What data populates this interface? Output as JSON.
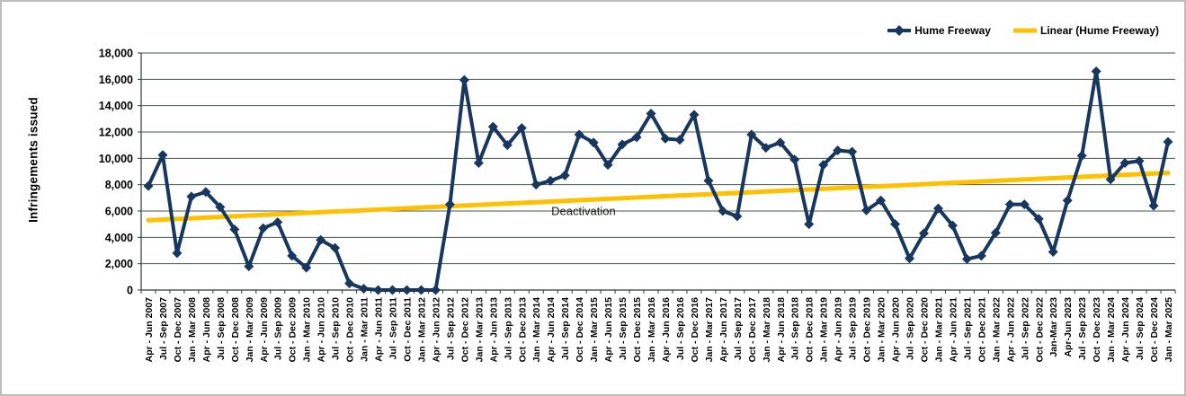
{
  "chart_data": {
    "type": "line",
    "title": "",
    "xlabel": "",
    "ylabel": "Infringements issued",
    "ylim": [
      0,
      18000
    ],
    "ytick_step": 2000,
    "ytick_labels": [
      "0",
      "2,000",
      "4,000",
      "6,000",
      "8,000",
      "10,000",
      "12,000",
      "14,000",
      "16,000",
      "18,000"
    ],
    "grid": true,
    "legend_position": "top-right",
    "categories": [
      "Apr - Jun 2007",
      "Jul - Sep 2007",
      "Oct - Dec 2007",
      "Jan - Mar 2008",
      "Apr - Jun 2008",
      "Jul - Sep 2008",
      "Oct - Dec 2008",
      "Jan - Mar 2009",
      "Apr - Jun 2009",
      "Jul - Sep 2009",
      "Oct - Dec 2009",
      "Jan - Mar 2010",
      "Apr - Jun 2010",
      "Jul - Sep 2010",
      "Oct - Dec 2010",
      "Jan - Mar 2011",
      "Apr - Jun 2011",
      "Jul - Sep 2011",
      "Oct - Dec 2011",
      "Jan - Mar 2012",
      "Apr - Jun 2012",
      "Jul - Sep 2012",
      "Oct - Dec 2012",
      "Jan - Mar 2013",
      "Apr - Jun 2013",
      "Jul - Sep 2013",
      "Oct - Dec 2013",
      "Jan - Mar 2014",
      "Apr - Jun 2014",
      "Jul - Sep 2014",
      "Oct - Dec 2014",
      "Jan - Mar 2015",
      "Apr - Jun 2015",
      "Jul - Sep 2015",
      "Oct - Dec 2015",
      "Jan - Mar 2016",
      "Apr - Jun 2016",
      "Jul - Sep 2016",
      "Oct - Dec 2016",
      "Jan - Mar 2017",
      "Apr - Jun 2017",
      "Jul - Sep 2017",
      "Oct - Dec 2017",
      "Jan - Mar 2018",
      "Apr - Jun 2018",
      "Jul - Sep 2018",
      "Oct - Dec 2018",
      "Jan - Mar 2019",
      "Apr - Jun 2019",
      "Jul - Sep 2019",
      "Oct - Dec 2019",
      "Jan - Mar 2020",
      "Apr - Jun 2020",
      "Jul - Sep 2020",
      "Oct - Dec 2020",
      "Jan - Mar 2021",
      "Apr - Jun 2021",
      "Jul - Sep 2021",
      "Oct - Dec 2021",
      "Jan - Mar 2022",
      "Apr - Jun 2022",
      "Jul - Sep 2022",
      "Oct - Dec 2022",
      "Jan-Mar 2023",
      "Apr-Jun 2023",
      "Jul - Sep 2023",
      "Oct - Dec 2023",
      "Jan - Mar 2024",
      "Apr - Jun 2024",
      "Jul - Sep 2024",
      "Oct - Dec 2024",
      "Jan - Mar 2025"
    ],
    "series": [
      {
        "name": "Hume Freeway",
        "type": "line",
        "marker": "diamond",
        "color": "#17375E",
        "values": [
          7900,
          10250,
          2800,
          7100,
          7450,
          6300,
          4600,
          1800,
          4700,
          5150,
          2600,
          1700,
          3800,
          3200,
          500,
          100,
          0,
          0,
          0,
          0,
          0,
          6500,
          15950,
          9650,
          12400,
          11000,
          12300,
          8000,
          8300,
          8700,
          11800,
          11200,
          9500,
          11050,
          11600,
          13400,
          11500,
          11400,
          13300,
          8300,
          6000,
          5600,
          11800,
          10800,
          11200,
          9900,
          5000,
          9500,
          10600,
          10500,
          6050,
          6800,
          5000,
          2400,
          4300,
          6200,
          4900,
          2350,
          2600,
          4350,
          6500,
          6500,
          5400,
          2900,
          6800,
          10200,
          16600,
          8400,
          9650,
          9800,
          6400,
          11250
        ]
      },
      {
        "name": "Linear (Hume Freeway)",
        "type": "linear-trend",
        "color": "#FFC000",
        "start_value": 5300,
        "end_value": 8900
      }
    ],
    "annotation": {
      "text": "Deactivation",
      "x_index": 30.3,
      "y_value": 6000
    },
    "colors": {
      "series_line": "#17375E",
      "trend_line": "#FFC000",
      "gridline": "#44584a",
      "axis": "#2f3b33",
      "text": "#000000",
      "figure_border": "#bdbdbd",
      "background": "#FFFFFF"
    }
  }
}
